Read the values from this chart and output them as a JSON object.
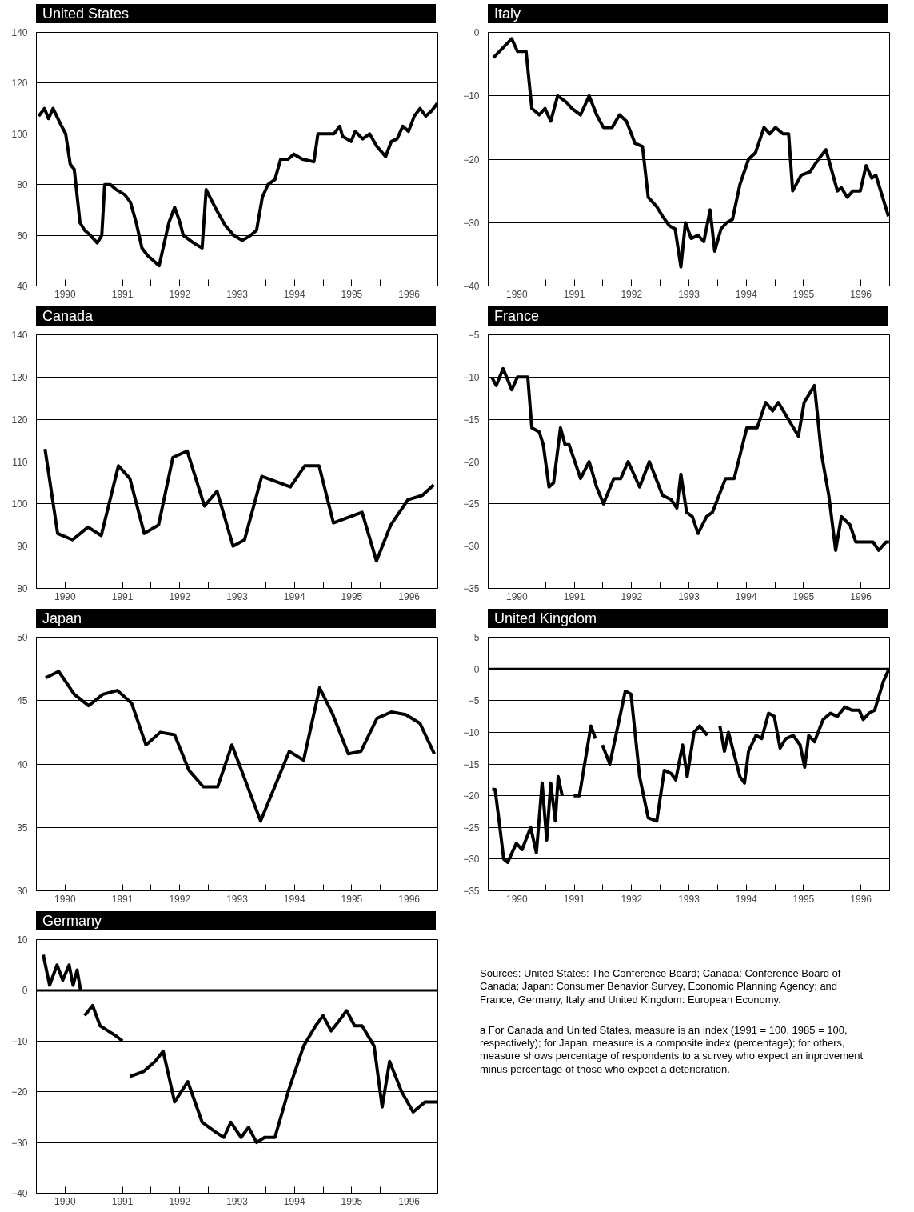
{
  "chart_data": [
    {
      "type": "line",
      "title": "United States",
      "color": "#000000",
      "grid": "y",
      "xlim": [
        1990,
        1997
      ],
      "ylim": [
        40,
        140
      ],
      "yticks": [
        40,
        60,
        80,
        100,
        120,
        140
      ],
      "xticks": [
        {
          "value": 1990.5,
          "label": "1990"
        },
        {
          "value": 1991,
          "label": null
        },
        {
          "value": 1991.5,
          "label": "1991"
        },
        {
          "value": 1992,
          "label": null
        },
        {
          "value": 1992.5,
          "label": "1992"
        },
        {
          "value": 1993,
          "label": null
        },
        {
          "value": 1993.5,
          "label": "1993"
        },
        {
          "value": 1994,
          "label": null
        },
        {
          "value": 1994.5,
          "label": "1994"
        },
        {
          "value": 1995,
          "label": null
        },
        {
          "value": 1995.5,
          "label": "1995"
        },
        {
          "value": 1996,
          "label": null
        },
        {
          "value": 1996.5,
          "label": "1996"
        }
      ],
      "x": [
        1990.04,
        1990.14,
        1990.21,
        1990.29,
        1990.44,
        1990.51,
        1990.59,
        1990.66,
        1990.76,
        1990.84,
        1990.94,
        1991.06,
        1991.14,
        1991.19,
        1991.29,
        1991.39,
        1991.54,
        1991.64,
        1991.74,
        1991.84,
        1991.94,
        1992.04,
        1992.14,
        1992.31,
        1992.41,
        1992.49,
        1992.56,
        1992.74,
        1992.89,
        1992.96,
        1993.14,
        1993.29,
        1993.44,
        1993.59,
        1993.74,
        1993.84,
        1993.94,
        1994.04,
        1994.16,
        1994.26,
        1994.39,
        1994.49,
        1994.64,
        1994.84,
        1994.91,
        1995.09,
        1995.19,
        1995.29,
        1995.34,
        1995.49,
        1995.56,
        1995.69,
        1995.81,
        1995.94,
        1996.09,
        1996.19,
        1996.29,
        1996.39,
        1996.49,
        1996.59,
        1996.69,
        1996.79,
        1996.89,
        1996.99
      ],
      "values": [
        107,
        110,
        106,
        110,
        103,
        100,
        88,
        86,
        65,
        62,
        60,
        57,
        60,
        80,
        80,
        78,
        76,
        73,
        65,
        55,
        52,
        50,
        48,
        65,
        71,
        66,
        60,
        57,
        55,
        78,
        70,
        64,
        60,
        58,
        60,
        62,
        75,
        80,
        82,
        90,
        90,
        92,
        90,
        89,
        100,
        100,
        100,
        103,
        99,
        97,
        101,
        98,
        100,
        95,
        91,
        97,
        98,
        103,
        101,
        107,
        110,
        107,
        109,
        112
      ]
    },
    {
      "type": "line",
      "title": "Italy",
      "color": "#000000",
      "grid": "y",
      "xlim": [
        1990,
        1997
      ],
      "ylim": [
        -40,
        0
      ],
      "yticks": [
        -40,
        -30,
        -20,
        -10,
        0
      ],
      "xticks": [
        {
          "value": 1990.5,
          "label": "1990"
        },
        {
          "value": 1991,
          "label": null
        },
        {
          "value": 1991.5,
          "label": "1991"
        },
        {
          "value": 1992,
          "label": null
        },
        {
          "value": 1992.5,
          "label": "1992"
        },
        {
          "value": 1993,
          "label": null
        },
        {
          "value": 1993.5,
          "label": "1993"
        },
        {
          "value": 1994,
          "label": null
        },
        {
          "value": 1994.5,
          "label": "1994"
        },
        {
          "value": 1995,
          "label": null
        },
        {
          "value": 1995.5,
          "label": "1995"
        },
        {
          "value": 1996,
          "label": null
        },
        {
          "value": 1996.5,
          "label": "1996"
        }
      ],
      "x": [
        1990.09,
        1990.41,
        1990.51,
        1990.66,
        1990.76,
        1990.89,
        1990.99,
        1991.09,
        1991.21,
        1991.36,
        1991.46,
        1991.61,
        1991.76,
        1991.89,
        1992.01,
        1992.16,
        1992.29,
        1992.41,
        1992.56,
        1992.69,
        1992.79,
        1992.94,
        1993.04,
        1993.16,
        1993.26,
        1993.36,
        1993.44,
        1993.54,
        1993.66,
        1993.76,
        1993.87,
        1993.95,
        1994.06,
        1994.16,
        1994.26,
        1994.39,
        1994.54,
        1994.66,
        1994.81,
        1994.91,
        1995.01,
        1995.14,
        1995.24,
        1995.31,
        1995.46,
        1995.61,
        1995.76,
        1995.89,
        1996.09,
        1996.16,
        1996.26,
        1996.36,
        1996.49,
        1996.59,
        1996.69,
        1996.76,
        1996.98
      ],
      "values": [
        -4,
        -1,
        -3,
        -3,
        -12,
        -13,
        -12,
        -14,
        -10,
        -11,
        -12,
        -13,
        -10,
        -13,
        -15,
        -15,
        -13,
        -14,
        -17.5,
        -18,
        -26,
        -27.5,
        -29,
        -30.5,
        -31,
        -37,
        -30,
        -32.5,
        -32,
        -33,
        -28,
        -34.5,
        -31,
        -30,
        -29.5,
        -24,
        -20,
        -19,
        -15,
        -16,
        -15,
        -16,
        -16,
        -25,
        -22.5,
        -22,
        -20,
        -18.5,
        -25,
        -24.5,
        -26,
        -25,
        -25,
        -21,
        -23,
        -22.5,
        -29
      ]
    },
    {
      "type": "line",
      "title": "Canada",
      "color": "#000000",
      "grid": "y",
      "xlim": [
        1990,
        1997
      ],
      "ylim": [
        80,
        140
      ],
      "yticks": [
        80,
        90,
        100,
        110,
        120,
        130,
        140
      ],
      "xticks": [
        {
          "value": 1990.5,
          "label": "1990"
        },
        {
          "value": 1991,
          "label": null
        },
        {
          "value": 1991.5,
          "label": "1991"
        },
        {
          "value": 1992,
          "label": null
        },
        {
          "value": 1992.5,
          "label": "1992"
        },
        {
          "value": 1993,
          "label": null
        },
        {
          "value": 1993.5,
          "label": "1993"
        },
        {
          "value": 1994,
          "label": null
        },
        {
          "value": 1994.5,
          "label": "1994"
        },
        {
          "value": 1995,
          "label": null
        },
        {
          "value": 1995.5,
          "label": "1995"
        },
        {
          "value": 1996,
          "label": null
        },
        {
          "value": 1996.5,
          "label": "1996"
        }
      ],
      "x": [
        1990.15,
        1990.37,
        1990.63,
        1990.9,
        1991.13,
        1991.43,
        1991.63,
        1991.88,
        1992.13,
        1992.38,
        1992.63,
        1992.93,
        1993.15,
        1993.43,
        1993.63,
        1993.93,
        1994.43,
        1994.68,
        1994.93,
        1995.18,
        1995.48,
        1995.68,
        1995.93,
        1996.18,
        1996.48,
        1996.73,
        1996.93
      ],
      "values": [
        113,
        93,
        91.5,
        94.5,
        92.5,
        109,
        106,
        93,
        95,
        111,
        112.5,
        99.5,
        103,
        90,
        91.5,
        106.5,
        104,
        109,
        109,
        95.5,
        97,
        98,
        86.5,
        95,
        101,
        102,
        104.5
      ]
    },
    {
      "type": "line",
      "title": "France",
      "color": "#000000",
      "grid": "y",
      "xlim": [
        1990,
        1997
      ],
      "ylim": [
        -35,
        -5
      ],
      "yticks": [
        -35,
        -30,
        -25,
        -20,
        -15,
        -10,
        -5
      ],
      "xticks": [
        {
          "value": 1990.5,
          "label": "1990"
        },
        {
          "value": 1991,
          "label": null
        },
        {
          "value": 1991.5,
          "label": "1991"
        },
        {
          "value": 1992,
          "label": null
        },
        {
          "value": 1992.5,
          "label": "1992"
        },
        {
          "value": 1993,
          "label": null
        },
        {
          "value": 1993.5,
          "label": "1993"
        },
        {
          "value": 1994,
          "label": null
        },
        {
          "value": 1994.5,
          "label": "1994"
        },
        {
          "value": 1995,
          "label": null
        },
        {
          "value": 1995.5,
          "label": "1995"
        },
        {
          "value": 1996,
          "label": null
        },
        {
          "value": 1996.5,
          "label": "1996"
        }
      ],
      "x": [
        1990.06,
        1990.14,
        1990.26,
        1990.41,
        1990.51,
        1990.69,
        1990.76,
        1990.89,
        1990.96,
        1991.06,
        1991.14,
        1991.26,
        1991.34,
        1991.41,
        1991.61,
        1991.76,
        1991.89,
        1992.01,
        1992.19,
        1992.31,
        1992.44,
        1992.64,
        1992.81,
        1993.04,
        1993.19,
        1993.29,
        1993.36,
        1993.46,
        1993.56,
        1993.66,
        1993.81,
        1993.91,
        1994.14,
        1994.29,
        1994.51,
        1994.69,
        1994.84,
        1994.96,
        1995.06,
        1995.41,
        1995.51,
        1995.69,
        1995.81,
        1995.94,
        1996.06,
        1996.16,
        1996.31,
        1996.41,
        1996.71,
        1996.81,
        1996.94,
        1996.99
      ],
      "values": [
        -10,
        -11,
        -9,
        -11.5,
        -10,
        -10,
        -16,
        -16.5,
        -18,
        -23,
        -22.5,
        -16,
        -18,
        -18,
        -22,
        -20,
        -23,
        -25,
        -22,
        -22,
        -20,
        -23,
        -20,
        -24,
        -24.5,
        -25.5,
        -21.5,
        -26,
        -26.5,
        -28.5,
        -26.5,
        -26,
        -22,
        -22,
        -16,
        -16,
        -13,
        -14,
        -13,
        -17,
        -13,
        -11,
        -19,
        -24,
        -30.5,
        -26.5,
        -27.5,
        -29.5,
        -29.5,
        -30.5,
        -29.5,
        -29.5
      ]
    },
    {
      "type": "line",
      "title": "Japan",
      "color": "#000000",
      "grid": "y",
      "xlim": [
        1990,
        1997
      ],
      "ylim": [
        30,
        50
      ],
      "yticks": [
        30,
        35,
        40,
        45,
        50
      ],
      "xticks": [
        {
          "value": 1990.5,
          "label": "1990"
        },
        {
          "value": 1991,
          "label": null
        },
        {
          "value": 1991.5,
          "label": "1991"
        },
        {
          "value": 1992,
          "label": null
        },
        {
          "value": 1992.5,
          "label": "1992"
        },
        {
          "value": 1993,
          "label": null
        },
        {
          "value": 1993.5,
          "label": "1993"
        },
        {
          "value": 1994,
          "label": null
        },
        {
          "value": 1994.5,
          "label": "1994"
        },
        {
          "value": 1995,
          "label": null
        },
        {
          "value": 1995.5,
          "label": "1995"
        },
        {
          "value": 1996,
          "label": null
        },
        {
          "value": 1996.5,
          "label": "1996"
        }
      ],
      "x": [
        1990.16,
        1990.39,
        1990.66,
        1990.91,
        1991.16,
        1991.41,
        1991.66,
        1991.91,
        1992.16,
        1992.41,
        1992.66,
        1992.91,
        1993.16,
        1993.41,
        1993.91,
        1994.41,
        1994.66,
        1994.94,
        1995.16,
        1995.44,
        1995.66,
        1995.94,
        1996.19,
        1996.44,
        1996.69,
        1996.94
      ],
      "values": [
        46.8,
        47.3,
        45.5,
        44.6,
        45.5,
        45.8,
        44.8,
        41.5,
        42.5,
        42.3,
        39.5,
        38.2,
        38.2,
        41.5,
        35.5,
        41,
        40.3,
        46,
        44,
        40.8,
        41,
        43.6,
        44.1,
        43.9,
        43.2,
        40.8
      ]
    },
    {
      "type": "line",
      "title": "United Kingdom",
      "color": "#000000",
      "grid": "y",
      "xlim": [
        1990,
        1997
      ],
      "ylim": [
        -35,
        5
      ],
      "yticks": [
        -35,
        -30,
        -25,
        -20,
        -15,
        -10,
        -5,
        0,
        5
      ],
      "ref_lines": [
        {
          "axis": "y",
          "value": 0,
          "color": "#000000"
        }
      ],
      "xticks": [
        {
          "value": 1990.5,
          "label": "1990"
        },
        {
          "value": 1991,
          "label": null
        },
        {
          "value": 1991.5,
          "label": "1991"
        },
        {
          "value": 1992,
          "label": null
        },
        {
          "value": 1992.5,
          "label": "1992"
        },
        {
          "value": 1993,
          "label": null
        },
        {
          "value": 1993.5,
          "label": "1993"
        },
        {
          "value": 1994,
          "label": null
        },
        {
          "value": 1994.5,
          "label": "1994"
        },
        {
          "value": 1995,
          "label": null
        },
        {
          "value": 1995.5,
          "label": "1995"
        },
        {
          "value": 1996,
          "label": null
        },
        {
          "value": 1996.5,
          "label": "1996"
        }
      ],
      "x": [
        1990.07,
        1990.12,
        1990.19,
        1990.27,
        1990.34,
        1990.49,
        1990.59,
        1990.74,
        1990.84,
        1990.94,
        1991.02,
        1991.09,
        1991.17,
        1991.22,
        1991.29,
        1991.39,
        1991.49,
        1991.59,
        1991.79,
        1991.87,
        1991.94,
        1991.99,
        1992.12,
        1992.39,
        1992.49,
        1992.64,
        1992.79,
        1992.94,
        1993.07,
        1993.19,
        1993.27,
        1993.39,
        1993.47,
        1993.59,
        1993.69,
        1993.82,
        1993.92,
        1994.04,
        1994.12,
        1994.19,
        1994.39,
        1994.47,
        1994.54,
        1994.67,
        1994.77,
        1994.89,
        1994.99,
        1995.09,
        1995.19,
        1995.32,
        1995.44,
        1995.52,
        1995.59,
        1995.69,
        1995.84,
        1995.97,
        1996.09,
        1996.22,
        1996.34,
        1996.47,
        1996.54,
        1996.64,
        1996.74,
        1996.89,
        1996.99
      ],
      "values": [
        -19,
        -19,
        -24,
        -30,
        -30.5,
        -27.5,
        -28.5,
        -25,
        -29,
        -18,
        -27,
        -18,
        -24,
        -17,
        -20,
        null,
        -20,
        -20,
        -9,
        -11,
        null,
        -12,
        -15,
        -3.5,
        -4,
        -17,
        -23.5,
        -24,
        -16,
        -16.5,
        -17.5,
        -12,
        -17,
        -10,
        -9,
        -10.5,
        null,
        -9,
        -13,
        -10,
        -17,
        -18,
        -13,
        -10.5,
        -11,
        -7,
        -7.5,
        -12.5,
        -11,
        -10.5,
        -12,
        -15.5,
        -10.5,
        -11.5,
        -8,
        -7,
        -7.5,
        -6,
        -6.5,
        -6.5,
        -8,
        -7,
        -6.5,
        -2,
        0
      ]
    },
    {
      "type": "line",
      "title": "Germany",
      "color": "#000000",
      "grid": "y",
      "xlim": [
        1990,
        1997
      ],
      "ylim": [
        -40,
        10
      ],
      "yticks": [
        -40,
        -30,
        -20,
        -10,
        0,
        10
      ],
      "ref_lines": [
        {
          "axis": "y",
          "value": 0,
          "color": "#000000"
        }
      ],
      "xticks": [
        {
          "value": 1990.5,
          "label": "1990"
        },
        {
          "value": 1991,
          "label": null
        },
        {
          "value": 1991.5,
          "label": "1991"
        },
        {
          "value": 1992,
          "label": null
        },
        {
          "value": 1992.5,
          "label": "1992"
        },
        {
          "value": 1993,
          "label": null
        },
        {
          "value": 1993.5,
          "label": "1993"
        },
        {
          "value": 1994,
          "label": null
        },
        {
          "value": 1994.5,
          "label": "1994"
        },
        {
          "value": 1995,
          "label": null
        },
        {
          "value": 1995.5,
          "label": "1995"
        },
        {
          "value": 1996,
          "label": null
        },
        {
          "value": 1996.5,
          "label": "1996"
        }
      ],
      "x": [
        1990.12,
        1990.23,
        1990.36,
        1990.46,
        1990.57,
        1990.64,
        1990.71,
        1990.77,
        1990.81,
        1990.84,
        1990.98,
        1991.11,
        1991.25,
        1991.39,
        1991.5,
        1991.57,
        1991.63,
        1991.87,
        1992.07,
        1992.21,
        1992.41,
        1992.64,
        1992.89,
        1993.13,
        1993.27,
        1993.39,
        1993.57,
        1993.7,
        1993.84,
        1993.98,
        1994.16,
        1994.39,
        1994.66,
        1994.87,
        1995.0,
        1995.14,
        1995.28,
        1995.41,
        1995.55,
        1995.68,
        1995.89,
        1996.03,
        1996.16,
        1996.37,
        1996.57,
        1996.78,
        1996.98
      ],
      "values": [
        7,
        1,
        5,
        2,
        5,
        1,
        4,
        0,
        null,
        -5,
        -3,
        -7,
        -8,
        -9,
        -10,
        null,
        -17,
        -16,
        -14,
        -12,
        -22,
        -18,
        -26,
        -28,
        -29,
        -26,
        -29,
        -27,
        -30,
        -29,
        -29,
        -20,
        -11,
        -7,
        -5,
        -8,
        -6,
        -4,
        -7,
        -7,
        -11,
        -23,
        -14,
        -20,
        -24,
        -22,
        -22
      ]
    },
    {
      "type": "other",
      "annotations": [
        "Sources: United States: The Conference Board; Canada: Conference Board of Canada; Japan: Consumer Behavior Survey, Economic Planning Agency; and France, Germany, Italy and United Kingdom: European Economy.",
        "a   For Canada and United States, measure is an index (1991 = 100, 1985 = 100, respectively); for Japan, measure is a composite index (percentage); for others, measure shows percentage of respondents to a survey who expect an inprovement minus percentage of those who expect a deterioration."
      ]
    }
  ]
}
